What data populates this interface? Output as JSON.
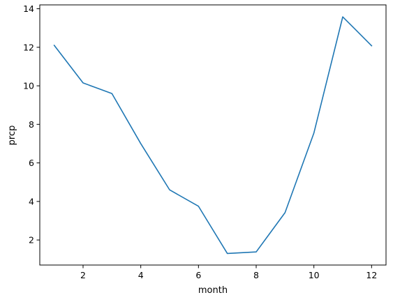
{
  "chart_data": {
    "type": "line",
    "xlabel": "month",
    "ylabel": "prcp",
    "xlim": [
      0.5,
      12.5
    ],
    "ylim": [
      0.7,
      14.2
    ],
    "x_ticks": [
      2,
      4,
      6,
      8,
      10,
      12
    ],
    "y_ticks": [
      2,
      4,
      6,
      8,
      10,
      12,
      14
    ],
    "grid": false,
    "series": [
      {
        "color": "#1f77b4",
        "x": [
          1,
          2,
          3,
          4,
          5,
          6,
          7,
          8,
          9,
          10,
          11,
          12
        ],
        "values": [
          12.1,
          10.15,
          9.6,
          7.0,
          4.6,
          3.75,
          1.3,
          1.38,
          3.42,
          7.55,
          13.58,
          12.08
        ]
      }
    ]
  }
}
